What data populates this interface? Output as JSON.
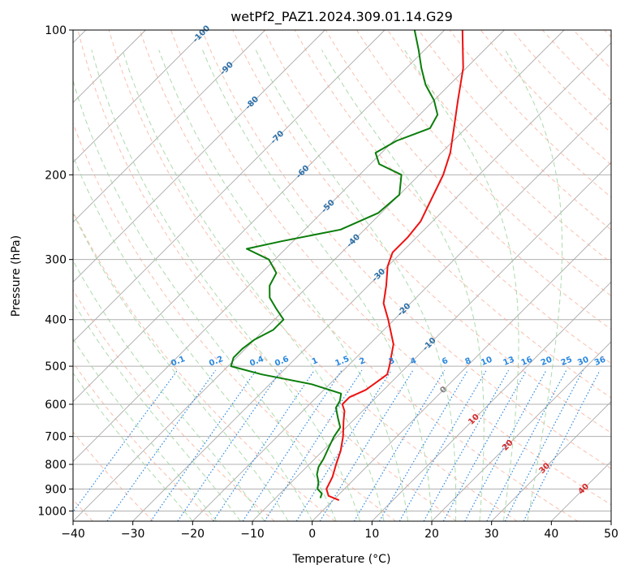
{
  "chart_data": {
    "type": "line",
    "title": "wetPf2_PAZ1.2024.309.01.14.G29",
    "xlabel": "Temperature (°C)",
    "ylabel": "Pressure (hPa)",
    "xlim": [
      -40,
      50
    ],
    "ylim": [
      1050,
      100
    ],
    "y_scale": "log",
    "x_ticks": [
      -40,
      -30,
      -20,
      -10,
      0,
      10,
      20,
      30,
      40,
      50
    ],
    "y_ticks": [
      100,
      200,
      300,
      400,
      500,
      600,
      700,
      800,
      900,
      1000
    ],
    "skew": true,
    "grid": true,
    "colors": {
      "temperature": "#ee1111",
      "dewpoint": "#0a7d0a",
      "dry_adiabats": "#f7a48a",
      "moist_adiabats": "#9fd49f",
      "mixing_ratio": "#2a88e0",
      "isotherm_label_cold": "#2c6fa8",
      "isotherm_label_warm": "#d62728",
      "isotherm_label_zero": "#808080"
    },
    "series": [
      {
        "values": [
          {
            "p": 950,
            "t": 1.0
          },
          {
            "p": 930,
            "t": -1.5
          },
          {
            "p": 900,
            "t": -3.0
          },
          {
            "p": 850,
            "t": -4.0
          },
          {
            "p": 800,
            "t": -5.5
          },
          {
            "p": 750,
            "t": -7.0
          },
          {
            "p": 700,
            "t": -9.0
          },
          {
            "p": 650,
            "t": -11.5
          },
          {
            "p": 620,
            "t": -13.0
          },
          {
            "p": 600,
            "t": -14.5
          },
          {
            "p": 580,
            "t": -14.5
          },
          {
            "p": 560,
            "t": -13.0
          },
          {
            "p": 540,
            "t": -12.5
          },
          {
            "p": 520,
            "t": -12.0
          },
          {
            "p": 500,
            "t": -13.0
          },
          {
            "p": 450,
            "t": -16.0
          },
          {
            "p": 400,
            "t": -21.0
          },
          {
            "p": 370,
            "t": -24.5
          },
          {
            "p": 340,
            "t": -27.0
          },
          {
            "p": 310,
            "t": -30.0
          },
          {
            "p": 290,
            "t": -31.5
          },
          {
            "p": 270,
            "t": -31.5
          },
          {
            "p": 250,
            "t": -32.0
          },
          {
            "p": 230,
            "t": -33.5
          },
          {
            "p": 200,
            "t": -36.0
          },
          {
            "p": 180,
            "t": -38.5
          },
          {
            "p": 160,
            "t": -42.0
          },
          {
            "p": 140,
            "t": -46.0
          },
          {
            "p": 120,
            "t": -50.5
          },
          {
            "p": 100,
            "t": -57.0
          }
        ]
      },
      {
        "values": [
          {
            "p": 940,
            "t": -2.5
          },
          {
            "p": 920,
            "t": -3.0
          },
          {
            "p": 900,
            "t": -4.5
          },
          {
            "p": 870,
            "t": -5.5
          },
          {
            "p": 840,
            "t": -7.0
          },
          {
            "p": 810,
            "t": -8.0
          },
          {
            "p": 780,
            "t": -8.5
          },
          {
            "p": 740,
            "t": -9.5
          },
          {
            "p": 700,
            "t": -10.5
          },
          {
            "p": 670,
            "t": -11.0
          },
          {
            "p": 640,
            "t": -13.0
          },
          {
            "p": 610,
            "t": -15.0
          },
          {
            "p": 590,
            "t": -15.5
          },
          {
            "p": 570,
            "t": -16.5
          },
          {
            "p": 545,
            "t": -23.0
          },
          {
            "p": 520,
            "t": -33.0
          },
          {
            "p": 500,
            "t": -39.5
          },
          {
            "p": 480,
            "t": -40.5
          },
          {
            "p": 460,
            "t": -40.5
          },
          {
            "p": 440,
            "t": -40.0
          },
          {
            "p": 420,
            "t": -38.5
          },
          {
            "p": 400,
            "t": -38.5
          },
          {
            "p": 380,
            "t": -41.5
          },
          {
            "p": 360,
            "t": -44.5
          },
          {
            "p": 340,
            "t": -46.5
          },
          {
            "p": 320,
            "t": -47.5
          },
          {
            "p": 300,
            "t": -51.0
          },
          {
            "p": 285,
            "t": -56.5
          },
          {
            "p": 275,
            "t": -52.0
          },
          {
            "p": 260,
            "t": -44.0
          },
          {
            "p": 240,
            "t": -40.5
          },
          {
            "p": 220,
            "t": -40.0
          },
          {
            "p": 200,
            "t": -43.0
          },
          {
            "p": 190,
            "t": -48.5
          },
          {
            "p": 180,
            "t": -51.0
          },
          {
            "p": 170,
            "t": -49.5
          },
          {
            "p": 160,
            "t": -46.0
          },
          {
            "p": 150,
            "t": -47.0
          },
          {
            "p": 140,
            "t": -50.0
          },
          {
            "p": 130,
            "t": -54.0
          },
          {
            "p": 120,
            "t": -57.5
          },
          {
            "p": 110,
            "t": -61.0
          },
          {
            "p": 100,
            "t": -65.0
          }
        ]
      }
    ],
    "isotherm_labels": [
      {
        "t": -100,
        "text": "-100"
      },
      {
        "t": -90,
        "text": "-90"
      },
      {
        "t": -80,
        "text": "-80"
      },
      {
        "t": -70,
        "text": "-70"
      },
      {
        "t": -60,
        "text": "-60"
      },
      {
        "t": -50,
        "text": "-50"
      },
      {
        "t": -40,
        "text": "-40"
      },
      {
        "t": -30,
        "text": "-30"
      },
      {
        "t": -20,
        "text": "-20"
      },
      {
        "t": -10,
        "text": "-10"
      },
      {
        "t": 0,
        "text": "0"
      },
      {
        "t": 10,
        "text": "10"
      },
      {
        "t": 20,
        "text": "20"
      },
      {
        "t": 30,
        "text": "30"
      },
      {
        "t": 40,
        "text": "40"
      }
    ],
    "mixing_ratio_labels": [
      {
        "w": 0.1,
        "text": "0.1"
      },
      {
        "w": 0.2,
        "text": "0.2"
      },
      {
        "w": 0.4,
        "text": "0.4"
      },
      {
        "w": 0.6,
        "text": "0.6"
      },
      {
        "w": 1,
        "text": "1"
      },
      {
        "w": 1.5,
        "text": "1.5"
      },
      {
        "w": 2,
        "text": "2"
      },
      {
        "w": 3,
        "text": "3"
      },
      {
        "w": 4,
        "text": "4"
      },
      {
        "w": 6,
        "text": "6"
      },
      {
        "w": 8,
        "text": "8"
      },
      {
        "w": 10,
        "text": "10"
      },
      {
        "w": 13,
        "text": "13"
      },
      {
        "w": 16,
        "text": "16"
      },
      {
        "w": 20,
        "text": "20"
      },
      {
        "w": 25,
        "text": "25"
      },
      {
        "w": 30,
        "text": "30"
      },
      {
        "w": 36,
        "text": "36"
      }
    ]
  }
}
